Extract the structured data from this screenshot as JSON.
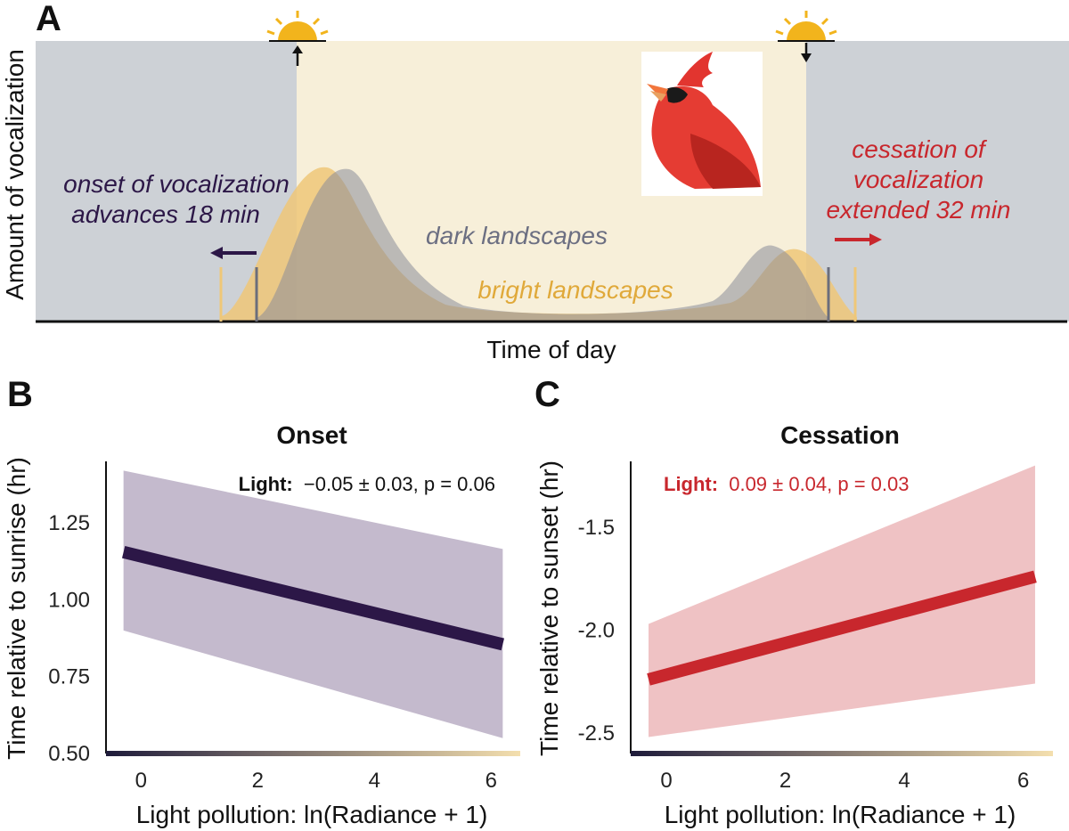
{
  "panels": {
    "a": {
      "letter": "A",
      "ylabel": "Amount of vocalization",
      "xlabel": "Time of day",
      "dark_label": "dark landscapes",
      "bright_label": "bright landscapes",
      "onset_line1": "onset of vocalization",
      "onset_line2": "advances 18 min",
      "cessation_line1": "cessation of",
      "cessation_line2": "vocalization",
      "cessation_line3": "extended 32 min",
      "sunrise_icon": "sunrise-icon",
      "sunset_icon": "sunset-icon",
      "bird_icon": "cardinal-bird-icon"
    },
    "b": {
      "letter": "B",
      "title": "Onset",
      "ylabel": "Time relative to sunrise (hr)",
      "xlabel": "Light pollution: ln(Radiance + 1)",
      "stat_label": "Light:",
      "stat_value": "−0.05 ± 0.03, p = 0.06",
      "yticks": [
        "1.25",
        "1.00",
        "0.75",
        "0.50"
      ],
      "xticks": [
        "0",
        "2",
        "4",
        "6"
      ]
    },
    "c": {
      "letter": "C",
      "title": "Cessation",
      "ylabel": "Time relative to sunset (hr)",
      "xlabel": "Light pollution: ln(Radiance + 1)",
      "stat_label": "Light:",
      "stat_value": "0.09 ± 0.04, p = 0.03",
      "yticks": [
        "-1.5",
        "-2.0",
        "-2.5"
      ],
      "xticks": [
        "0",
        "2",
        "4",
        "6"
      ]
    }
  },
  "colors": {
    "night": "#cdd1d6",
    "day": "#f7efd9",
    "dark_series": "#8a8d99",
    "bright_series": "#efc778",
    "onset": "#2c1747",
    "onset_band": "#c4bacd",
    "cessation": "#c8272d",
    "cessation_band": "#efc2c4",
    "gradient_start": "#1e1b3a",
    "gradient_end": "#f4dfae"
  },
  "chart_data": [
    {
      "panel": "A",
      "type": "area",
      "title": "",
      "xlabel": "Time of day",
      "ylabel": "Amount of vocalization",
      "series": [
        {
          "name": "dark landscapes",
          "description": "vocal activity curve"
        },
        {
          "name": "bright landscapes",
          "description": "vocal activity curve, onset 18 min earlier, cessation 32 min later"
        }
      ],
      "annotations": [
        "onset of vocalization advances 18 min",
        "cessation of vocalization extended 32 min"
      ]
    },
    {
      "panel": "B",
      "type": "line",
      "title": "Onset",
      "xlabel": "Light pollution: ln(Radiance + 1)",
      "ylabel": "Time relative to sunrise (hr)",
      "xlim": [
        -0.6,
        6.5
      ],
      "ylim": [
        0.5,
        1.45
      ],
      "x": [
        -0.3,
        6.2
      ],
      "y": [
        1.155,
        0.855
      ],
      "ci_lower": [
        0.9,
        0.55
      ],
      "ci_upper": [
        1.42,
        1.165
      ],
      "annotation": "Light: −0.05 ± 0.03, p = 0.06"
    },
    {
      "panel": "C",
      "type": "line",
      "title": "Cessation",
      "xlabel": "Light pollution: ln(Radiance + 1)",
      "ylabel": "Time relative to sunset (hr)",
      "xlim": [
        -0.6,
        6.5
      ],
      "ylim": [
        -2.6,
        -1.18
      ],
      "x": [
        -0.3,
        6.2
      ],
      "y": [
        -2.24,
        -1.74
      ],
      "ci_lower": [
        -2.52,
        -2.26
      ],
      "ci_upper": [
        -1.97,
        -1.2
      ],
      "annotation": "Light: 0.09 ± 0.04, p = 0.03"
    }
  ]
}
